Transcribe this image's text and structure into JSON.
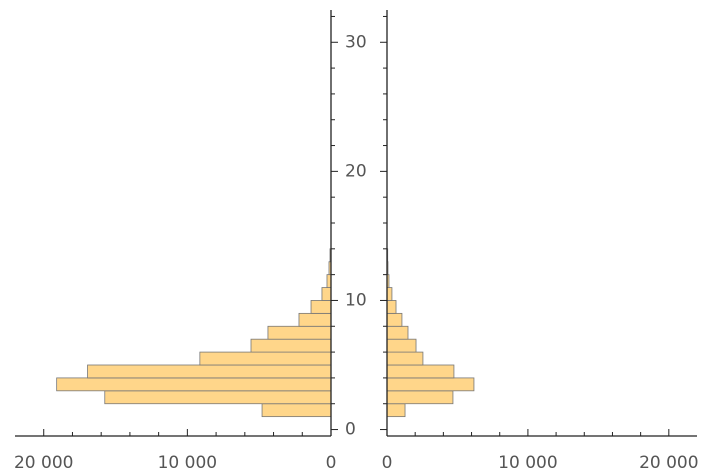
{
  "chart_data": {
    "type": "paired_histogram",
    "bins": [
      1,
      2,
      3,
      4,
      5,
      6,
      7,
      8,
      9,
      10,
      11,
      12,
      13,
      14
    ],
    "series": [
      {
        "side": "left",
        "color": "#ffd68a",
        "values": [
          4800,
          15750,
          19100,
          16950,
          9130,
          5570,
          4390,
          2230,
          1390,
          630,
          280,
          140,
          70
        ]
      },
      {
        "side": "right",
        "color": "#ffd68a",
        "values": [
          1280,
          4680,
          6170,
          4750,
          2550,
          2060,
          1490,
          1060,
          640,
          350,
          140,
          70,
          50
        ]
      }
    ],
    "xlim": [
      0,
      22000
    ],
    "xticks": [
      0,
      {
        "value": 10000,
        "label": "10 000"
      },
      {
        "value": 20000,
        "label": "20 000"
      }
    ],
    "ylim": [
      -0.5,
      32.5
    ],
    "yticks": [
      0,
      10,
      20,
      30
    ]
  }
}
